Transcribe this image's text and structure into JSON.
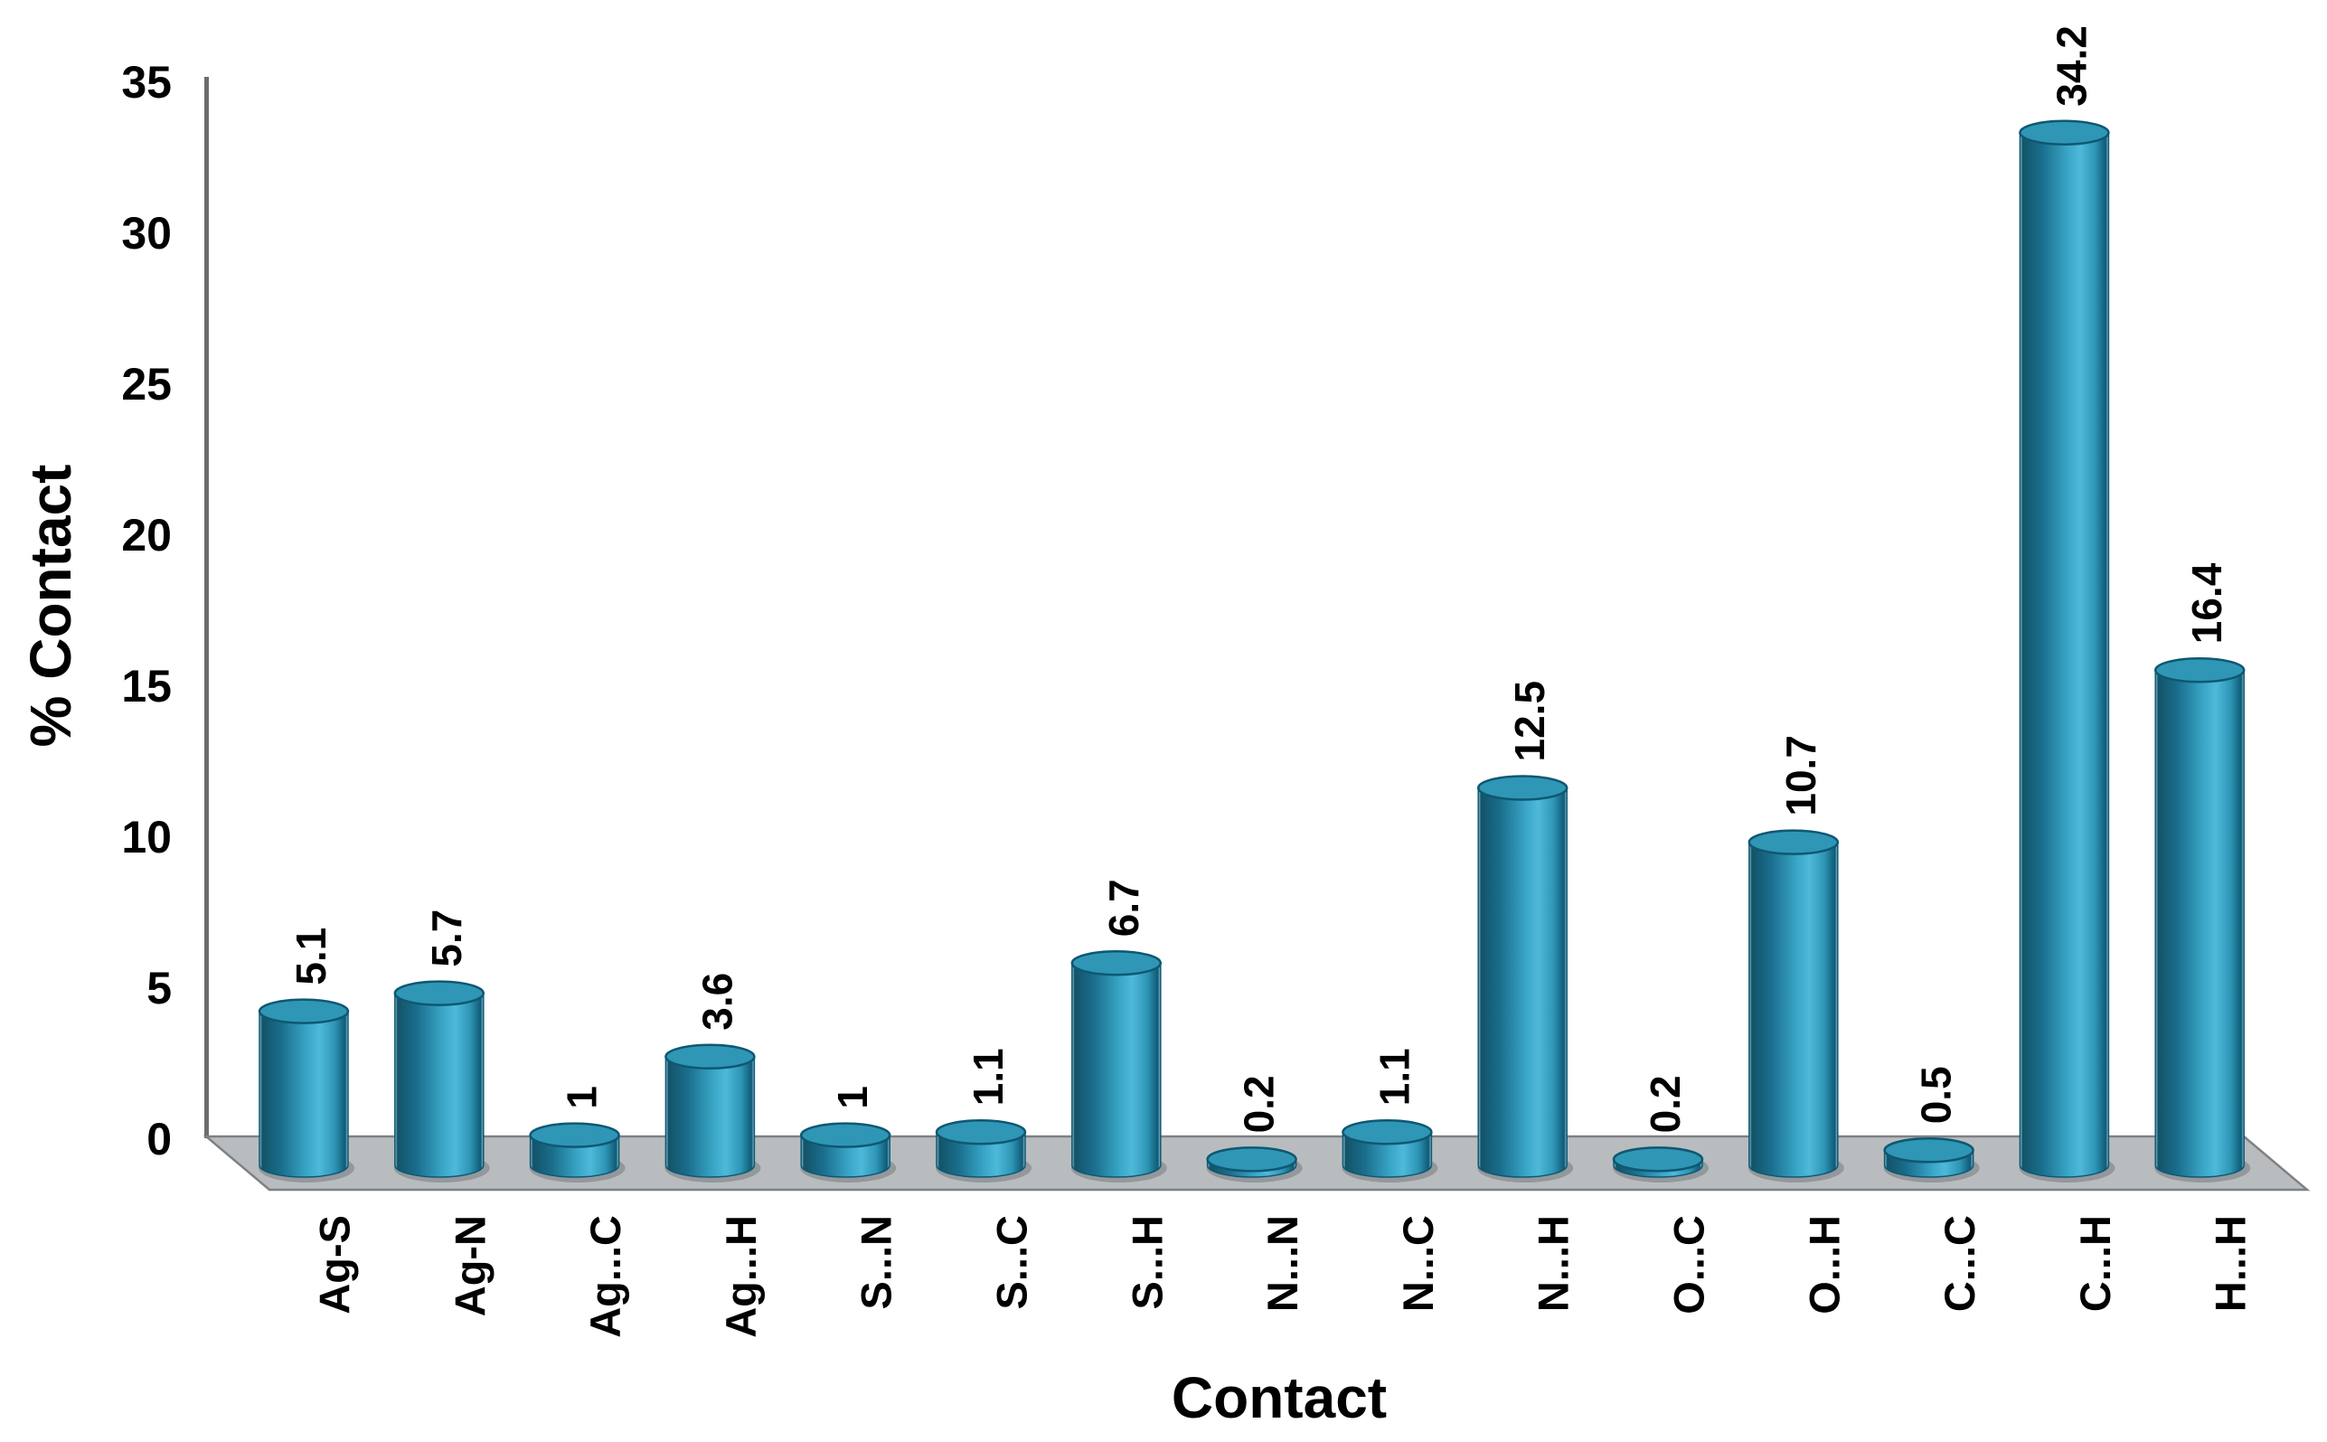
{
  "chart_data": {
    "type": "bar",
    "bar_style": "3d-cylinder",
    "title": "",
    "xlabel": "Contact",
    "ylabel": "% Contact",
    "categories": [
      "Ag-S",
      "Ag-N",
      "Ag...C",
      "Ag...H",
      "S...N",
      "S...C",
      "S...H",
      "N...N",
      "N...C",
      "N...H",
      "O...C",
      "O...H",
      "C...C",
      "C...H",
      "H...H"
    ],
    "values": [
      5.1,
      5.7,
      1,
      3.6,
      1,
      1.1,
      6.7,
      0.2,
      1.1,
      12.5,
      0.2,
      10.7,
      0.5,
      34.2,
      16.4
    ],
    "data_labels": [
      "5.1",
      "5.7",
      "1",
      "3.6",
      "1",
      "1.1",
      "6.7",
      "0.2",
      "1.1",
      "12.5",
      "0.2",
      "10.7",
      "0.5",
      "34.2",
      "16.4"
    ],
    "ylim": [
      0,
      35
    ],
    "yticks": [
      0,
      5,
      10,
      15,
      20,
      25,
      30,
      35
    ],
    "grid": false,
    "legend": false,
    "colors": {
      "bar_bright": "#4fb9da",
      "bar_mid": "#3ba8c9",
      "bar_dark": "#135368",
      "bar_top": "#3096b6",
      "bar_outline": "#0e5872",
      "floor_fill": "#b9bcbf",
      "floor_stroke": "#7e8184",
      "axis_line": "#6a6c6e",
      "text": "#000000",
      "background": "#ffffff"
    }
  }
}
